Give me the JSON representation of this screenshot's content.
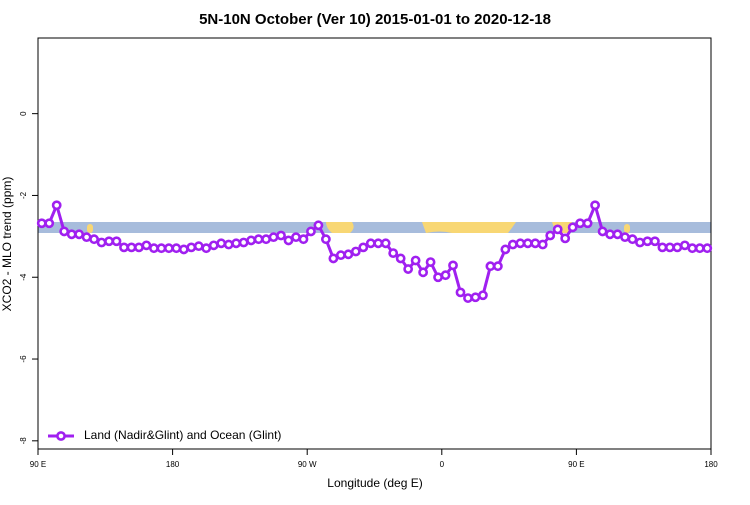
{
  "chart_data": {
    "type": "line",
    "title": "5N-10N October (Ver 10)   2015-01-01 to 2020-12-18",
    "xlabel": "Longitude (deg E)",
    "ylabel": "XCO2 - MLO trend (ppm)",
    "xlim": [
      90,
      540
    ],
    "ylim": [
      -8.2,
      1.85
    ],
    "xticks": [
      {
        "value": 90,
        "label": "90 E"
      },
      180,
      {
        "value": 270,
        "label": "90 W"
      },
      {
        "value": 360,
        "label": "0"
      },
      {
        "value": 450,
        "label": "90 E"
      },
      {
        "value": 540,
        "label": "180"
      }
    ],
    "yticks": [
      0,
      -2,
      -4,
      -6,
      -8
    ],
    "legend": "lower left",
    "x": [
      92.5,
      97.5,
      102.5,
      107.5,
      112.5,
      117.5,
      122.5,
      127.5,
      132.5,
      137.5,
      142.5,
      147.5,
      152.5,
      157.5,
      162.5,
      167.5,
      172.5,
      177.5,
      182.5,
      187.5,
      192.5,
      197.5,
      202.5,
      207.5,
      212.5,
      217.5,
      222.5,
      227.5,
      232.5,
      237.5,
      242.5,
      247.5,
      252.5,
      257.5,
      262.5,
      267.5,
      272.5,
      277.5,
      282.5,
      287.5,
      292.5,
      297.5,
      302.5,
      307.5,
      312.5,
      317.5,
      322.5,
      327.5,
      332.5,
      337.5,
      342.5,
      347.5,
      352.5,
      357.5,
      362.5,
      367.5,
      372.5,
      377.5,
      382.5,
      387.5,
      392.5,
      397.5,
      402.5,
      407.5,
      412.5,
      417.5,
      422.5,
      427.5,
      432.5,
      437.5,
      442.5,
      447.5,
      452.5,
      457.5,
      462.5,
      467.5,
      472.5,
      477.5,
      482.5,
      487.5,
      492.5,
      497.5,
      502.5,
      507.5,
      512.5,
      517.5,
      522.5,
      527.5,
      532.5,
      537.5
    ],
    "series": [
      {
        "name": "Land (Nadir&Glint) and Ocean (Glint)",
        "color": "#a020f0",
        "values": [
          -2.68,
          -2.68,
          -2.24,
          -2.88,
          -2.95,
          -2.95,
          -3.02,
          -3.07,
          -3.15,
          -3.12,
          -3.12,
          -3.27,
          -3.27,
          -3.27,
          -3.22,
          -3.29,
          -3.29,
          -3.29,
          -3.29,
          -3.32,
          -3.27,
          -3.24,
          -3.29,
          -3.22,
          -3.17,
          -3.2,
          -3.17,
          -3.15,
          -3.1,
          -3.07,
          -3.07,
          -3.02,
          -2.98,
          -3.1,
          -3.02,
          -3.07,
          -2.88,
          -2.73,
          -3.07,
          -3.54,
          -3.46,
          -3.44,
          -3.37,
          -3.27,
          -3.17,
          -3.17,
          -3.17,
          -3.41,
          -3.54,
          -3.8,
          -3.59,
          -3.88,
          -3.63,
          -4.0,
          -3.95,
          -3.71,
          -4.37,
          -4.51,
          -4.49,
          -4.44,
          -3.73,
          -3.73,
          -3.32,
          -3.2,
          -3.17,
          -3.17,
          -3.17,
          -3.2,
          -2.98,
          -2.83,
          -3.05,
          -2.78,
          -2.68,
          -2.68,
          -2.24,
          -2.88,
          -2.95,
          -2.95,
          -3.02,
          -3.07,
          -3.15,
          -3.12,
          -3.12,
          -3.27,
          -3.27,
          -3.27,
          -3.22,
          -3.29,
          -3.29,
          -3.29
        ]
      }
    ]
  }
}
